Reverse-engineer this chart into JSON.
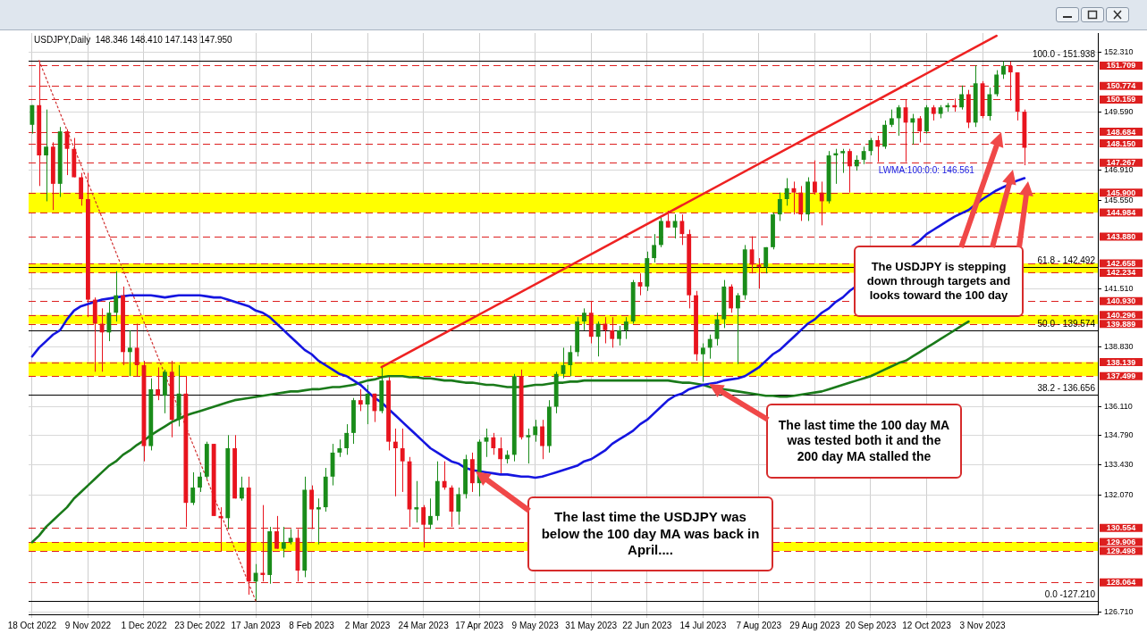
{
  "chart_data": {
    "type": "candlestick",
    "title": "USDJPY,Daily  148.346 148.410 147.143 147.950",
    "categories": [
      "18 Oct 2022",
      null,
      null,
      null,
      null,
      null,
      null,
      null,
      "9 Nov 2022",
      null,
      null,
      null,
      null,
      null,
      null,
      null,
      "1 Dec 2022",
      null,
      null,
      null,
      null,
      null,
      null,
      null,
      "23 Dec 2022",
      null,
      null,
      null,
      null,
      null,
      null,
      null,
      "17 Jan 2023",
      null,
      null,
      null,
      null,
      null,
      null,
      null,
      "8 Feb 2023",
      null,
      null,
      null,
      null,
      null,
      null,
      null,
      "2 Mar 2023",
      null,
      null,
      null,
      null,
      null,
      null,
      null,
      "24 Mar 2023",
      null,
      null,
      null,
      null,
      null,
      null,
      null,
      "17 Apr 2023",
      null,
      null,
      null,
      null,
      null,
      null,
      null,
      "9 May 2023",
      null,
      null,
      null,
      null,
      null,
      null,
      null,
      "31 May 2023",
      null,
      null,
      null,
      null,
      null,
      null,
      null,
      "22 Jun 2023",
      null,
      null,
      null,
      null,
      null,
      null,
      null,
      "14 Jul 2023",
      null,
      null,
      null,
      null,
      null,
      null,
      null,
      "7 Aug 2023",
      null,
      null,
      null,
      null,
      null,
      null,
      null,
      "29 Aug 2023",
      null,
      null,
      null,
      null,
      null,
      null,
      null,
      "20 Sep 2023",
      null,
      null,
      null,
      null,
      null,
      null,
      null,
      "12 Oct 2023",
      null,
      null,
      null,
      null,
      null,
      null,
      null,
      "3 Nov 2023",
      null,
      null,
      null,
      null,
      null,
      null,
      null,
      null,
      null,
      null,
      null,
      null,
      null,
      null,
      null,
      null
    ],
    "ohlc": [
      [
        149.0,
        149.9,
        148.6,
        149.9
      ],
      [
        149.9,
        151.94,
        146.2,
        147.6
      ],
      [
        147.6,
        149.7,
        145.5,
        148.0
      ],
      [
        148.0,
        148.2,
        145.1,
        146.3
      ],
      [
        146.3,
        148.9,
        145.7,
        148.7
      ],
      [
        148.7,
        148.8,
        146.7,
        147.9
      ],
      [
        147.9,
        148.4,
        146.6,
        146.6
      ],
      [
        146.6,
        146.8,
        145.3,
        145.6
      ],
      [
        145.6,
        146.8,
        140.2,
        141.0
      ],
      [
        141.0,
        141.1,
        137.7,
        139.9
      ],
      [
        139.9,
        140.6,
        137.7,
        139.5
      ],
      [
        139.5,
        140.9,
        139.1,
        140.4
      ],
      [
        140.4,
        142.3,
        140.0,
        141.2
      ],
      [
        141.2,
        141.6,
        138.0,
        138.6
      ],
      [
        138.6,
        139.6,
        137.5,
        138.8
      ],
      [
        138.8,
        139.9,
        137.5,
        138.0
      ],
      [
        138.0,
        138.2,
        133.6,
        134.3
      ],
      [
        134.3,
        137.4,
        134.1,
        136.9
      ],
      [
        136.9,
        137.9,
        136.4,
        136.6
      ],
      [
        136.6,
        137.8,
        135.8,
        137.7
      ],
      [
        137.7,
        138.2,
        134.7,
        135.5
      ],
      [
        135.5,
        138.0,
        135.2,
        136.7
      ],
      [
        136.7,
        137.5,
        130.6,
        131.7
      ],
      [
        131.7,
        133.1,
        131.6,
        132.4
      ],
      [
        132.4,
        133.1,
        132.2,
        132.9
      ],
      [
        132.9,
        134.5,
        132.8,
        134.4
      ],
      [
        134.4,
        134.4,
        131.1,
        131.1
      ],
      [
        131.1,
        131.5,
        129.5,
        131.0
      ],
      [
        131.0,
        134.8,
        130.5,
        134.2
      ],
      [
        134.2,
        134.8,
        131.9,
        131.9
      ],
      [
        131.9,
        132.9,
        131.8,
        132.4
      ],
      [
        132.4,
        132.9,
        127.5,
        128.1
      ],
      [
        128.1,
        128.9,
        127.21,
        128.5
      ],
      [
        128.5,
        131.6,
        128.1,
        128.4
      ],
      [
        128.4,
        130.6,
        128.0,
        130.4
      ],
      [
        130.4,
        131.1,
        129.6,
        129.6
      ],
      [
        129.6,
        130.6,
        129.2,
        129.9
      ],
      [
        129.9,
        130.5,
        129.8,
        130.1
      ],
      [
        130.1,
        130.5,
        128.1,
        128.6
      ],
      [
        128.6,
        132.9,
        128.3,
        132.3
      ],
      [
        132.3,
        132.5,
        130.5,
        131.4
      ],
      [
        131.4,
        131.9,
        129.8,
        131.5
      ],
      [
        131.5,
        133.3,
        131.3,
        132.9
      ],
      [
        132.9,
        134.4,
        132.5,
        134.0
      ],
      [
        134.0,
        134.6,
        133.8,
        134.2
      ],
      [
        134.2,
        135.3,
        133.9,
        134.9
      ],
      [
        134.9,
        136.5,
        134.4,
        136.4
      ],
      [
        136.4,
        136.9,
        135.9,
        136.2
      ],
      [
        136.2,
        137.1,
        135.3,
        136.7
      ],
      [
        136.7,
        136.7,
        135.4,
        135.9
      ],
      [
        135.9,
        137.91,
        135.8,
        137.3
      ],
      [
        137.3,
        137.5,
        134.1,
        134.5
      ],
      [
        134.5,
        135.1,
        132.0,
        134.2
      ],
      [
        134.2,
        135.1,
        132.2,
        133.6
      ],
      [
        133.6,
        133.8,
        130.6,
        131.4
      ],
      [
        131.4,
        132.7,
        130.8,
        131.5
      ],
      [
        131.5,
        131.6,
        129.65,
        130.7
      ],
      [
        130.7,
        131.9,
        130.5,
        131.1
      ],
      [
        131.1,
        133.6,
        130.9,
        132.7
      ],
      [
        132.7,
        133.6,
        132.3,
        132.4
      ],
      [
        132.4,
        132.5,
        130.6,
        131.3
      ],
      [
        131.3,
        132.4,
        130.7,
        132.1
      ],
      [
        132.1,
        133.9,
        131.9,
        133.7
      ],
      [
        133.7,
        134.0,
        132.2,
        132.6
      ],
      [
        132.6,
        134.6,
        132.0,
        134.5
      ],
      [
        134.5,
        135.1,
        133.8,
        134.7
      ],
      [
        134.7,
        134.9,
        133.9,
        134.2
      ],
      [
        134.2,
        134.7,
        133.0,
        133.7
      ],
      [
        133.7,
        134.1,
        133.5,
        133.9
      ],
      [
        133.9,
        137.6,
        133.6,
        137.5
      ],
      [
        137.5,
        137.8,
        134.6,
        134.7
      ],
      [
        134.7,
        135.1,
        133.5,
        134.8
      ],
      [
        134.8,
        135.5,
        134.5,
        135.2
      ],
      [
        135.2,
        135.5,
        133.7,
        134.3
      ],
      [
        134.3,
        136.4,
        134.0,
        136.1
      ],
      [
        136.1,
        137.7,
        135.8,
        137.6
      ],
      [
        137.6,
        138.8,
        137.4,
        138.0
      ],
      [
        138.0,
        138.9,
        137.5,
        138.6
      ],
      [
        138.6,
        140.2,
        138.4,
        140.0
      ],
      [
        140.0,
        140.6,
        139.6,
        140.4
      ],
      [
        140.4,
        140.93,
        139.0,
        139.3
      ],
      [
        139.3,
        140.0,
        138.4,
        139.9
      ],
      [
        139.9,
        140.2,
        139.0,
        139.6
      ],
      [
        139.6,
        140.2,
        138.8,
        139.2
      ],
      [
        139.2,
        139.8,
        138.9,
        139.6
      ],
      [
        139.6,
        140.2,
        139.2,
        140.0
      ],
      [
        140.0,
        141.9,
        139.9,
        141.8
      ],
      [
        141.8,
        142.2,
        141.2,
        141.6
      ],
      [
        141.6,
        143.2,
        141.4,
        142.9
      ],
      [
        142.9,
        144.0,
        142.7,
        143.5
      ],
      [
        143.5,
        144.8,
        143.4,
        144.6
      ],
      [
        144.6,
        145.07,
        144.3,
        144.3
      ],
      [
        144.3,
        144.9,
        143.8,
        144.6
      ],
      [
        144.6,
        144.9,
        143.5,
        144.0
      ],
      [
        144.0,
        144.2,
        140.6,
        141.2
      ],
      [
        141.2,
        141.4,
        138.2,
        138.5
      ],
      [
        138.5,
        139.0,
        137.24,
        138.8
      ],
      [
        138.8,
        139.4,
        138.3,
        139.2
      ],
      [
        139.2,
        140.4,
        138.9,
        140.1
      ],
      [
        140.1,
        141.9,
        139.7,
        141.6
      ],
      [
        141.6,
        141.7,
        140.4,
        140.6
      ],
      [
        140.6,
        141.3,
        138.05,
        141.2
      ],
      [
        141.2,
        143.5,
        141.0,
        143.3
      ],
      [
        143.3,
        143.9,
        142.2,
        142.6
      ],
      [
        142.6,
        142.9,
        141.5,
        142.5
      ],
      [
        142.5,
        143.4,
        142.2,
        143.4
      ],
      [
        143.4,
        145.0,
        143.3,
        144.9
      ],
      [
        144.9,
        145.9,
        144.6,
        145.6
      ],
      [
        145.6,
        146.56,
        145.3,
        146.1
      ],
      [
        146.1,
        146.4,
        144.9,
        145.9
      ],
      [
        145.9,
        146.2,
        144.6,
        144.9
      ],
      [
        144.9,
        146.6,
        144.6,
        146.4
      ],
      [
        146.4,
        147.37,
        145.8,
        145.9
      ],
      [
        145.9,
        146.4,
        144.4,
        145.5
      ],
      [
        145.5,
        147.8,
        145.4,
        147.6
      ],
      [
        147.6,
        147.9,
        146.3,
        147.7
      ],
      [
        147.7,
        147.9,
        146.8,
        147.8
      ],
      [
        147.8,
        147.9,
        145.9,
        147.1
      ],
      [
        147.1,
        147.6,
        146.9,
        147.4
      ],
      [
        147.4,
        148.0,
        147.2,
        147.8
      ],
      [
        147.8,
        148.4,
        147.6,
        148.3
      ],
      [
        148.3,
        148.5,
        147.3,
        148.0
      ],
      [
        148.0,
        149.2,
        147.9,
        149.0
      ],
      [
        149.0,
        149.7,
        148.9,
        149.3
      ],
      [
        149.3,
        149.9,
        148.5,
        149.8
      ],
      [
        149.8,
        150.16,
        147.3,
        149.1
      ],
      [
        149.1,
        149.5,
        148.1,
        149.3
      ],
      [
        149.3,
        149.4,
        148.2,
        148.7
      ],
      [
        148.7,
        149.9,
        148.6,
        149.8
      ],
      [
        149.8,
        149.9,
        149.2,
        149.5
      ],
      [
        149.5,
        149.9,
        149.3,
        149.8
      ],
      [
        149.8,
        150.0,
        149.6,
        149.9
      ],
      [
        149.9,
        150.2,
        149.6,
        149.8
      ],
      [
        149.8,
        150.8,
        149.7,
        150.4
      ],
      [
        150.4,
        150.6,
        148.85,
        149.1
      ],
      [
        149.1,
        151.72,
        148.9,
        150.9
      ],
      [
        150.9,
        151.0,
        149.3,
        149.4
      ],
      [
        149.4,
        150.7,
        149.2,
        150.4
      ],
      [
        150.4,
        151.5,
        150.3,
        151.3
      ],
      [
        151.3,
        151.91,
        151.1,
        151.7
      ],
      [
        151.7,
        151.9,
        150.1,
        151.4
      ],
      [
        151.4,
        151.4,
        149.2,
        149.6
      ],
      [
        149.6,
        149.7,
        147.15,
        147.95
      ],
      null,
      null,
      null,
      null,
      null,
      null,
      null,
      null,
      null,
      null
    ],
    "colors": [
      "#1a8c1a",
      "#e8141e",
      "#1a8c1a",
      "#e8141e",
      "#1a8c1a",
      "#e8141e",
      "#e8141e",
      "#e8141e",
      "#e8141e",
      "#e8141e",
      "#e8141e",
      "#1a8c1a",
      "#1a8c1a",
      "#e8141e",
      "#1a8c1a",
      "#e8141e",
      "#e8141e",
      "#1a8c1a",
      "#e8141e",
      "#1a8c1a",
      "#e8141e",
      "#1a8c1a",
      "#e8141e",
      "#1a8c1a",
      "#1a8c1a",
      "#1a8c1a",
      "#e8141e",
      "#e8141e",
      "#1a8c1a",
      "#e8141e",
      "#1a8c1a",
      "#e8141e",
      "#1a8c1a",
      "#e8141e",
      "#1a8c1a",
      "#e8141e",
      "#1a8c1a",
      "#1a8c1a",
      "#e8141e",
      "#1a8c1a",
      "#e8141e",
      "#1a8c1a",
      "#1a8c1a",
      "#1a8c1a",
      "#1a8c1a",
      "#1a8c1a",
      "#1a8c1a",
      "#e8141e",
      "#1a8c1a",
      "#e8141e",
      "#1a8c1a",
      "#e8141e",
      "#e8141e",
      "#e8141e",
      "#e8141e",
      "#1a8c1a",
      "#e8141e",
      "#1a8c1a",
      "#1a8c1a",
      "#e8141e",
      "#e8141e",
      "#1a8c1a",
      "#1a8c1a",
      "#e8141e",
      "#1a8c1a",
      "#1a8c1a",
      "#e8141e",
      "#e8141e",
      "#1a8c1a",
      "#1a8c1a",
      "#e8141e",
      "#1a8c1a",
      "#1a8c1a",
      "#e8141e",
      "#1a8c1a",
      "#1a8c1a",
      "#1a8c1a",
      "#1a8c1a",
      "#1a8c1a",
      "#1a8c1a",
      "#e8141e",
      "#1a8c1a",
      "#e8141e",
      "#e8141e",
      "#1a8c1a",
      "#1a8c1a",
      "#1a8c1a",
      "#e8141e",
      "#1a8c1a",
      "#1a8c1a",
      "#1a8c1a",
      "#e8141e",
      "#1a8c1a",
      "#e8141e",
      "#e8141e",
      "#e8141e",
      "#1a8c1a",
      "#1a8c1a",
      "#1a8c1a",
      "#1a8c1a",
      "#e8141e",
      "#1a8c1a",
      "#1a8c1a",
      "#e8141e",
      "#e8141e",
      "#1a8c1a",
      "#1a8c1a",
      "#1a8c1a",
      "#1a8c1a",
      "#e8141e",
      "#e8141e",
      "#1a8c1a",
      "#e8141e",
      "#e8141e",
      "#1a8c1a",
      "#1a8c1a",
      "#1a8c1a",
      "#e8141e",
      "#1a8c1a",
      "#1a8c1a",
      "#1a8c1a",
      "#e8141e",
      "#1a8c1a",
      "#1a8c1a",
      "#1a8c1a",
      "#e8141e",
      "#1a8c1a",
      "#e8141e",
      "#1a8c1a",
      "#e8141e",
      "#1a8c1a",
      "#1a8c1a",
      "#e8141e",
      "#1a8c1a",
      "#e8141e",
      "#1a8c1a",
      "#e8141e",
      "#1a8c1a",
      "#1a8c1a",
      "#1a8c1a",
      "#e8141e",
      "#e8141e",
      "#e8141e",
      null,
      null,
      null,
      null,
      null,
      null,
      null,
      null,
      null,
      null
    ],
    "ylim": [
      126.6,
      153.2
    ],
    "yticks": [
      {
        "value": 126.71,
        "label": "126.710"
      },
      {
        "value": 132.07,
        "label": "132.070"
      },
      {
        "value": 133.43,
        "label": "133.430"
      },
      {
        "value": 134.79,
        "label": "134.790"
      },
      {
        "value": 136.11,
        "label": "136.110"
      },
      {
        "value": 138.83,
        "label": "138.830"
      },
      {
        "value": 141.51,
        "label": "141.510"
      },
      {
        "value": 145.55,
        "label": "145.550"
      },
      {
        "value": 146.91,
        "label": "146.910"
      },
      {
        "value": 149.59,
        "label": "149.590"
      },
      {
        "value": 152.31,
        "label": "152.310"
      }
    ],
    "grid": true,
    "series": [
      {
        "type": "line",
        "name": "LWMA:100:0:0: 146.561",
        "color": "#1515e0",
        "values": [
          138.4,
          138.8,
          139.1,
          139.4,
          139.6,
          140.1,
          140.5,
          140.7,
          140.8,
          140.9,
          141.0,
          141.05,
          141.1,
          141.15,
          141.2,
          141.2,
          141.2,
          141.2,
          141.15,
          141.1,
          141.15,
          141.2,
          141.2,
          141.2,
          141.2,
          141.15,
          141.1,
          141.1,
          141.0,
          140.9,
          140.8,
          140.7,
          140.5,
          140.4,
          140.2,
          139.9,
          139.6,
          139.3,
          139.0,
          138.7,
          138.5,
          138.2,
          138.0,
          137.8,
          137.6,
          137.5,
          137.3,
          137.1,
          136.8,
          136.5,
          136.3,
          136.0,
          135.7,
          135.4,
          135.1,
          134.8,
          134.5,
          134.2,
          134.0,
          133.8,
          133.6,
          133.5,
          133.3,
          133.2,
          133.15,
          133.1,
          133.05,
          133.0,
          133.0,
          132.95,
          132.9,
          132.9,
          132.85,
          132.9,
          133.0,
          133.1,
          133.2,
          133.3,
          133.4,
          133.6,
          133.7,
          133.9,
          134.1,
          134.4,
          134.6,
          134.8,
          135.0,
          135.3,
          135.5,
          135.8,
          136.1,
          136.4,
          136.6,
          136.7,
          136.9,
          137.0,
          137.1,
          137.15,
          137.2,
          137.3,
          137.35,
          137.4,
          137.5,
          137.7,
          137.9,
          138.2,
          138.5,
          138.7,
          139.0,
          139.3,
          139.6,
          139.9,
          140.1,
          140.4,
          140.6,
          140.9,
          141.1,
          141.4,
          null,
          null,
          null,
          null,
          null,
          null,
          null,
          null,
          null,
          143.7,
          144.0,
          144.2,
          144.4,
          144.6,
          144.8,
          144.95,
          145.1,
          null,
          145.6,
          145.8,
          146.0,
          146.15,
          null,
          146.45,
          146.561,
          null,
          null,
          null,
          null,
          null,
          null,
          null,
          null,
          null,
          null
        ]
      },
      {
        "type": "line",
        "color": "#1a7a1a",
        "values": [
          129.9,
          130.2,
          130.6,
          130.9,
          131.2,
          131.5,
          131.9,
          132.2,
          132.5,
          132.8,
          133.1,
          133.4,
          133.6,
          133.9,
          134.1,
          134.35,
          134.55,
          134.8,
          135.0,
          135.2,
          135.4,
          135.55,
          135.7,
          135.8,
          135.9,
          136.0,
          136.1,
          136.2,
          136.3,
          136.4,
          136.45,
          136.5,
          136.55,
          136.6,
          136.65,
          136.7,
          136.75,
          136.8,
          136.8,
          136.85,
          136.9,
          136.9,
          136.95,
          137.0,
          137.0,
          137.05,
          137.1,
          137.2,
          137.3,
          137.35,
          137.45,
          137.5,
          137.5,
          137.5,
          137.45,
          137.45,
          137.4,
          137.4,
          137.35,
          137.3,
          137.3,
          137.25,
          137.2,
          137.2,
          137.15,
          137.1,
          137.1,
          137.05,
          137.0,
          137.0,
          137.0,
          137.05,
          137.1,
          137.1,
          137.15,
          137.2,
          137.2,
          137.25,
          137.25,
          137.3,
          137.3,
          137.3,
          137.3,
          137.3,
          137.3,
          137.3,
          137.3,
          137.3,
          137.3,
          137.3,
          137.3,
          137.3,
          137.25,
          137.2,
          137.2,
          137.15,
          137.1,
          137.0,
          null,
          136.9,
          136.85,
          136.8,
          136.75,
          136.7,
          136.65,
          136.6,
          136.6,
          136.56,
          136.56,
          136.6,
          136.65,
          136.7,
          136.75,
          136.8,
          136.9,
          137.0,
          137.1,
          137.2,
          137.3,
          137.4,
          137.5,
          137.65,
          137.8,
          137.95,
          138.1,
          138.2,
          138.4,
          138.6,
          138.8,
          139.0,
          139.2,
          139.4,
          139.6,
          139.8,
          140.0,
          null,
          null,
          null,
          null,
          null,
          null,
          null,
          null,
          null,
          null,
          null,
          null,
          null,
          null,
          null,
          null,
          null,
          null
        ]
      },
      {
        "type": "line",
        "color": "#ee2222",
        "values": [
          null,
          null,
          null,
          null,
          null,
          null,
          null,
          null,
          null,
          null,
          null,
          null,
          null,
          null,
          null,
          null,
          null,
          null,
          null,
          null,
          null,
          null,
          null,
          null,
          null,
          null,
          null,
          null,
          null,
          null,
          null,
          null,
          null,
          null,
          null,
          null,
          null,
          null,
          null,
          null,
          null,
          null,
          null,
          null,
          null,
          null,
          null,
          null,
          null,
          null,
          137.91,
          null,
          null,
          null,
          null,
          null,
          null,
          null,
          null,
          null,
          null,
          null,
          null,
          null,
          null,
          null,
          null,
          null,
          null,
          null,
          null,
          null,
          null,
          null,
          null,
          null,
          null,
          null,
          null,
          null,
          null,
          null,
          null,
          null,
          null,
          null,
          null,
          null,
          null,
          null,
          null,
          null,
          null,
          null,
          null,
          null,
          null,
          null,
          null,
          null,
          null,
          null,
          null,
          null,
          null,
          null,
          null,
          null,
          null,
          null,
          null,
          null,
          null,
          null,
          null,
          null,
          null,
          null,
          null,
          null,
          null,
          null,
          null,
          null,
          null,
          null,
          null,
          null,
          null,
          null,
          null,
          null,
          null,
          null,
          null,
          null,
          null,
          null,
          153.07,
          null,
          null,
          null,
          null,
          null,
          null,
          null,
          null,
          null,
          null,
          null,
          null,
          null,
          null
        ]
      },
      {
        "type": "line",
        "color": "#d23030",
        "line_style": "dotted",
        "values": [
          null,
          151.94,
          null,
          null,
          null,
          null,
          null,
          null,
          null,
          null,
          null,
          null,
          null,
          null,
          null,
          null,
          null,
          null,
          null,
          null,
          null,
          null,
          null,
          null,
          null,
          null,
          null,
          null,
          null,
          null,
          null,
          null,
          127.21,
          null,
          null,
          null,
          null,
          null,
          null,
          null,
          null,
          null,
          null,
          null,
          null,
          null,
          null,
          null,
          null,
          null,
          null,
          null,
          null,
          null,
          null,
          null,
          null,
          null,
          null,
          null,
          null,
          null,
          null,
          null,
          null,
          null,
          null,
          null,
          null,
          null,
          null,
          null,
          null,
          null,
          null,
          null,
          null,
          null,
          null,
          null,
          null,
          null,
          null,
          null,
          null,
          null,
          null,
          null,
          null,
          null,
          null,
          null,
          null,
          null,
          null,
          null,
          null,
          null,
          null,
          null,
          null,
          null,
          null,
          null,
          null,
          null,
          null,
          null,
          null,
          null,
          null,
          null,
          null,
          null,
          null,
          null,
          null,
          null,
          null,
          null,
          null,
          null,
          null,
          null,
          null,
          null,
          null,
          null,
          null,
          null,
          null,
          null,
          null,
          null,
          null,
          null,
          null,
          null,
          null,
          null,
          null,
          null,
          null,
          null,
          null,
          null,
          null,
          null,
          null,
          null,
          null,
          null,
          null
        ]
      }
    ],
    "ref_lines": [
      {
        "axis": "y",
        "value": 151.709,
        "label": "151.709",
        "color": "#dd1f1f",
        "line_style": "dashed"
      },
      {
        "axis": "y",
        "value": 150.774,
        "label": "150.774",
        "color": "#dd1f1f",
        "line_style": "dashed"
      },
      {
        "axis": "y",
        "value": 150.159,
        "label": "150.159",
        "color": "#dd1f1f",
        "line_style": "dashed"
      },
      {
        "axis": "y",
        "value": 148.684,
        "label": "148.684",
        "color": "#dd1f1f",
        "line_style": "dashed"
      },
      {
        "axis": "y",
        "value": 148.15,
        "label": "148.150",
        "color": "#dd1f1f",
        "line_style": "dashed"
      },
      {
        "axis": "y",
        "value": 147.267,
        "label": "147.267",
        "color": "#dd1f1f",
        "line_style": "dashed"
      },
      {
        "axis": "y",
        "value": 145.9,
        "label": "145.900",
        "color": "#dd1f1f",
        "line_style": "dashed"
      },
      {
        "axis": "y",
        "value": 144.984,
        "label": "144.984",
        "color": "#dd1f1f",
        "line_style": "dashed"
      },
      {
        "axis": "y",
        "value": 143.88,
        "label": "143.880",
        "color": "#dd1f1f",
        "line_style": "dashed"
      },
      {
        "axis": "y",
        "value": 142.658,
        "label": "142.658",
        "color": "#dd1f1f",
        "line_style": "dashed"
      },
      {
        "axis": "y",
        "value": 142.234,
        "label": "142.234",
        "color": "#dd1f1f",
        "line_style": "dashed"
      },
      {
        "axis": "y",
        "value": 140.93,
        "label": "140.930",
        "color": "#dd1f1f",
        "line_style": "dashed"
      },
      {
        "axis": "y",
        "value": 140.296,
        "label": "140.296",
        "color": "#dd1f1f",
        "line_style": "dashed"
      },
      {
        "axis": "y",
        "value": 139.889,
        "label": "139.889",
        "color": "#dd1f1f",
        "line_style": "dashed"
      },
      {
        "axis": "y",
        "value": 138.139,
        "label": "138.139",
        "color": "#dd1f1f",
        "line_style": "dashed"
      },
      {
        "axis": "y",
        "value": 137.499,
        "label": "137.499",
        "color": "#dd1f1f",
        "line_style": "dashed"
      },
      {
        "axis": "y",
        "value": 130.554,
        "label": "130.554",
        "color": "#dd1f1f",
        "line_style": "dashed"
      },
      {
        "axis": "y",
        "value": 129.906,
        "label": "129.906",
        "color": "#dd1f1f",
        "line_style": "dashed"
      },
      {
        "axis": "y",
        "value": 129.498,
        "label": "129.498",
        "color": "#dd1f1f",
        "line_style": "dashed"
      },
      {
        "axis": "y",
        "value": 128.064,
        "label": "128.064",
        "color": "#dd1f1f",
        "line_style": "dashed"
      },
      {
        "axis": "y",
        "value": 151.938,
        "color": "#000000",
        "line_style": "solid"
      },
      {
        "axis": "y",
        "value": 142.492,
        "color": "#000000",
        "line_style": "solid"
      },
      {
        "axis": "y",
        "value": 139.574,
        "color": "#000000",
        "line_style": "solid"
      },
      {
        "axis": "y",
        "value": 136.656,
        "color": "#000000",
        "line_style": "solid"
      },
      {
        "axis": "y",
        "value": 127.21,
        "color": "#000000",
        "line_style": "solid"
      }
    ],
    "bands": [
      {
        "axis": "y",
        "from": 144.984,
        "to": 145.9,
        "color": "#ffff00"
      },
      {
        "axis": "y",
        "from": 142.234,
        "to": 142.658,
        "color": "#ffff00"
      },
      {
        "axis": "y",
        "from": 139.889,
        "to": 140.296,
        "color": "#ffff00"
      },
      {
        "axis": "y",
        "from": 137.499,
        "to": 138.139,
        "color": "#ffff00"
      },
      {
        "axis": "y",
        "from": 129.498,
        "to": 129.906,
        "color": "#ffff00"
      }
    ],
    "annotations": [
      "The last time the USDJPY was below the 100 day MA was back in April....",
      "The last time the 100 day MA was tested both it and the 200 day MA stalled the",
      "The USDJPY is stepping down through targets and looks toward the 100 day",
      {
        "text": "100.0 - 151.938",
        "y": 151.938
      },
      {
        "text": "61.8 - 142.492",
        "y": 142.492
      },
      {
        "text": "50.0 - 139.574",
        "y": 139.574
      },
      {
        "text": "38.2 - 136.656",
        "y": 136.656
      },
      {
        "text": "0.0 -127.210",
        "y": 127.21
      }
    ]
  }
}
